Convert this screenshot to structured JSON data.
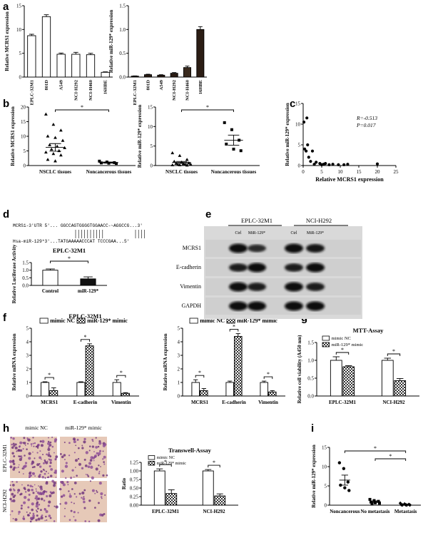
{
  "panels": {
    "a": "a",
    "b": "b",
    "c": "c",
    "d": "d",
    "e": "e",
    "f": "f",
    "g": "g",
    "h": "h",
    "i": "i"
  },
  "chart_data": [
    {
      "id": "a1",
      "type": "bar",
      "ylabel": "Relative MCRS1 expression",
      "categories": [
        "EPLC-32M1",
        "801D",
        "A549",
        "NCI-H292",
        "NCI-H460",
        "16HBE"
      ],
      "values": [
        8.7,
        12.7,
        4.8,
        4.8,
        4.7,
        1.0
      ],
      "errors": [
        0.3,
        0.4,
        0.25,
        0.4,
        0.3,
        0.1
      ],
      "ylim": [
        0,
        15
      ],
      "yticks": [
        0,
        5,
        10,
        15
      ]
    },
    {
      "id": "a2",
      "type": "bar",
      "ylabel": "Relative miR-129* expression",
      "categories": [
        "EPLC-32M1",
        "801D",
        "A549",
        "NCI-H292",
        "NCI-H460",
        "16HBE"
      ],
      "values": [
        0.02,
        0.05,
        0.04,
        0.08,
        0.2,
        1.0
      ],
      "errors": [
        0.005,
        0.01,
        0.01,
        0.015,
        0.03,
        0.06
      ],
      "ylim": [
        0,
        1.5
      ],
      "yticks": [
        0.0,
        0.5,
        1.0,
        1.5
      ]
    },
    {
      "id": "b1",
      "type": "scatter",
      "ylabel": "Relative MCRS1 expression",
      "categories": [
        "NSCLC tissues",
        "Noncancerous tissues"
      ],
      "groups": [
        [
          17.5,
          14,
          12,
          10,
          9.5,
          8.5,
          7,
          6.5,
          6,
          5.5,
          5,
          4.5,
          4,
          3.5,
          2,
          1.5
        ],
        [
          1.5,
          1.2,
          1,
          0.9,
          0.8,
          0.7
        ]
      ],
      "means": [
        6.2,
        1.0
      ],
      "sem": [
        1.3,
        0.2
      ],
      "ylim": [
        0,
        20
      ],
      "yticks": [
        0,
        5,
        10,
        15,
        20
      ],
      "significance": "*"
    },
    {
      "id": "b2",
      "type": "scatter",
      "ylabel": "Relative miR-129* expression",
      "categories": [
        "NSCLC tissues",
        "Noncancerous tissues"
      ],
      "groups": [
        [
          3.2,
          2.5,
          1.5,
          1.0,
          0.8,
          0.6,
          0.5,
          0.4,
          0.3,
          0.2,
          0.2,
          0.1,
          0.1,
          0.05
        ],
        [
          11,
          9.2,
          6.5,
          5.5,
          4.2,
          3.8
        ]
      ],
      "means": [
        0.8,
        6.5
      ],
      "sem": [
        0.25,
        1.3
      ],
      "ylim": [
        0,
        15
      ],
      "yticks": [
        0,
        5,
        10,
        15
      ],
      "significance": "*"
    },
    {
      "id": "c",
      "type": "scatter",
      "xlabel": "Relative MCRS1 expression",
      "ylabel": "Relative miR-129* expression",
      "x": [
        0.2,
        0.4,
        0.8,
        1.0,
        1.2,
        1.5,
        2.0,
        2.5,
        3.0,
        3.5,
        4.5,
        5.0,
        5.5,
        6.0,
        7.0,
        8.0,
        9.5,
        11.0,
        12.0,
        20.0
      ],
      "y": [
        10.5,
        4.0,
        3.5,
        11.5,
        5.0,
        2.0,
        1.0,
        3.5,
        0.3,
        0.8,
        0.5,
        0.2,
        0.3,
        0.5,
        0.2,
        0.3,
        0.2,
        0.2,
        0.3,
        0.4
      ],
      "xlim": [
        0,
        25
      ],
      "ylim": [
        0,
        15
      ],
      "xticks": [
        0,
        5,
        10,
        15,
        20,
        25
      ],
      "yticks": [
        0,
        5,
        10,
        15
      ],
      "stats": [
        "R=-0.513",
        "P=0.017"
      ]
    },
    {
      "id": "d",
      "type": "bar",
      "title": "EPLC-32M1",
      "ylabel": "Relative Luciferase Activity",
      "categories": [
        "Control",
        "miR-129*"
      ],
      "values": [
        1.0,
        0.43
      ],
      "errors": [
        0.08,
        0.13
      ],
      "ylim": [
        0,
        1.5
      ],
      "yticks": [
        0.0,
        0.5,
        1.0,
        1.5
      ],
      "significance": "*"
    },
    {
      "id": "f1",
      "type": "bar",
      "title": "EPLC-32M1",
      "ylabel": "Relative mRNA expression",
      "categories": [
        "MCRS1",
        "E-cadherin",
        "Vimentin"
      ],
      "legend": [
        "mimic NC",
        "miR-129* mimic"
      ],
      "series": [
        {
          "name": "mimic NC",
          "values": [
            1.0,
            1.0,
            1.0
          ],
          "errors": [
            0.05,
            0.05,
            0.2
          ]
        },
        {
          "name": "miR-129* mimic",
          "values": [
            0.4,
            3.7,
            0.2
          ],
          "errors": [
            0.2,
            0.15,
            0.05
          ]
        }
      ],
      "ylim": [
        0,
        5
      ],
      "yticks": [
        0,
        1,
        2,
        3,
        4,
        5
      ],
      "significance": [
        "*",
        "*",
        "*"
      ]
    },
    {
      "id": "f2",
      "type": "bar",
      "title": "NCI-H292",
      "ylabel": "Relative mRNA expression",
      "categories": [
        "MCRS1",
        "E-cadherin",
        "Vimentin"
      ],
      "legend": [
        "mimic NC",
        "miR-129* mimic"
      ],
      "series": [
        {
          "name": "mimic NC",
          "values": [
            1.0,
            1.0,
            1.0
          ],
          "errors": [
            0.2,
            0.1,
            0.1
          ]
        },
        {
          "name": "miR-129* mimic",
          "values": [
            0.4,
            4.4,
            0.3
          ],
          "errors": [
            0.15,
            0.2,
            0.1
          ]
        }
      ],
      "ylim": [
        0,
        5
      ],
      "yticks": [
        0,
        1,
        2,
        3,
        4,
        5
      ],
      "significance": [
        "*",
        "*",
        "*"
      ]
    },
    {
      "id": "g",
      "type": "bar",
      "title": "MTT-Assay",
      "ylabel": "Relative cell viability (A450 nm)",
      "categories": [
        "EPLC-32M1",
        "NCI-H292"
      ],
      "legend": [
        "mimic NC",
        "miR-129* mimic"
      ],
      "series": [
        {
          "name": "mimic NC",
          "values": [
            1.0,
            1.0
          ],
          "errors": [
            0.1,
            0.06
          ]
        },
        {
          "name": "miR-129* mimic",
          "values": [
            0.82,
            0.43
          ],
          "errors": [
            0.03,
            0.06
          ]
        }
      ],
      "ylim": [
        0,
        1.5
      ],
      "yticks": [
        0.0,
        0.5,
        1.0,
        1.5
      ],
      "significance": [
        "*",
        "*"
      ]
    },
    {
      "id": "h",
      "type": "bar",
      "title": "Transwell-Assay",
      "ylabel": "Ratio",
      "categories": [
        "EPLC-32M1",
        "NCI-H292"
      ],
      "legend": [
        "mimic NC",
        "miR-129* mimic"
      ],
      "series": [
        {
          "name": "mimic NC",
          "values": [
            1.0,
            1.0
          ],
          "errors": [
            0.06,
            0.04
          ]
        },
        {
          "name": "miR-129* mimic",
          "values": [
            0.34,
            0.27
          ],
          "errors": [
            0.11,
            0.06
          ]
        }
      ],
      "ylim": [
        0,
        1.25
      ],
      "yticks": [
        0.0,
        0.25,
        0.5,
        0.75,
        1.0,
        1.25
      ],
      "yticklabels": [
        "0.00",
        "0.25",
        "0.50",
        "0.75",
        "1.00",
        "1.25"
      ],
      "significance": [
        "*",
        "*"
      ]
    },
    {
      "id": "i",
      "type": "scatter",
      "ylabel": "Relative miR-129* expression",
      "categories": [
        "Noncancerous",
        "No metastasis",
        "Metastasis"
      ],
      "groups": [
        [
          11,
          9.5,
          6,
          5.2,
          4.5,
          3.8
        ],
        [
          1.5,
          1.2,
          1.0,
          0.8,
          0.6,
          0.5,
          0.4
        ],
        [
          0.5,
          0.3,
          0.2,
          0.1,
          0.1,
          0.05,
          0.05,
          0.02
        ]
      ],
      "means": [
        6.5,
        0.9,
        0.15
      ],
      "sem": [
        1.3,
        0.2,
        0.05
      ],
      "ylim": [
        0,
        15
      ],
      "yticks": [
        0,
        5,
        10,
        15
      ],
      "significance": [
        "*",
        "*"
      ]
    }
  ],
  "sequence": {
    "utr": "MCRS1-3'UTR 5'...    GGCCAGTGGGGTGGAACC-~AGGCCG...3'",
    "mir": "Hsa-miR-129*3'...TATGAAAAACCCAT              TCCCGAA...5'"
  },
  "blot": {
    "groups": [
      "EPLC-32M1",
      "NCI-H292"
    ],
    "lanes": [
      "Ctrl",
      "MiR-129*",
      "Ctrl",
      "MiR-129*"
    ],
    "rows": [
      "MCRS1",
      "E-cadherin",
      "Vimentin",
      "GAPDH"
    ],
    "intensity": [
      [
        1.0,
        0.55,
        1.0,
        0.8
      ],
      [
        0.7,
        1.0,
        0.7,
        1.0
      ],
      [
        1.0,
        0.75,
        1.0,
        0.75
      ],
      [
        1.0,
        1.0,
        1.0,
        1.0
      ]
    ]
  },
  "micrographs": {
    "cols": [
      "mimic NC",
      "miR-129* mimic"
    ],
    "rows": [
      "EPLC-32M1",
      "NCI-H292"
    ]
  }
}
